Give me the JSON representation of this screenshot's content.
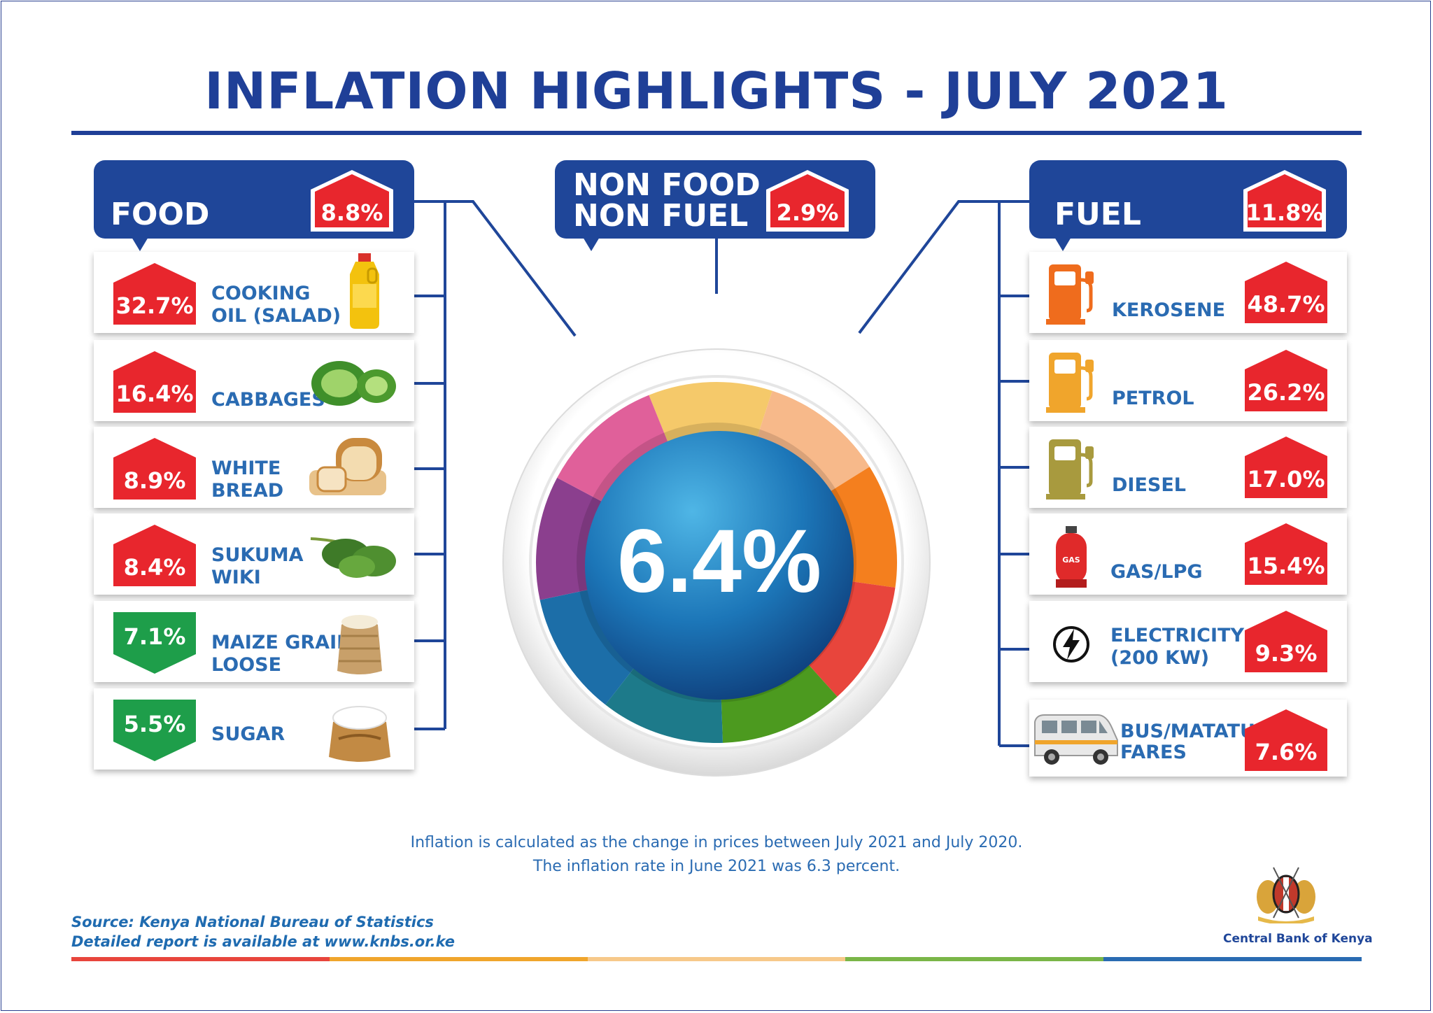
{
  "title": "INFLATION HIGHLIGHTS - JULY 2021",
  "overall": {
    "value": "6.4%"
  },
  "categories": {
    "food": {
      "label": "FOOD",
      "value": "8.8%"
    },
    "nonfood": {
      "label_line1": "NON FOOD",
      "label_line2": "NON FUEL",
      "value": "2.9%"
    },
    "fuel": {
      "label": "FUEL",
      "value": "11.8%"
    }
  },
  "food_items": [
    {
      "line1": "COOKING",
      "line2": "OIL (SALAD)",
      "value": "32.7%",
      "trend": "up",
      "icon": "cooking-oil-bottle-icon"
    },
    {
      "line1": "",
      "line2": "CABBAGES",
      "value": "16.4%",
      "trend": "up",
      "icon": "cabbage-icon"
    },
    {
      "line1": "WHITE",
      "line2": "BREAD",
      "value": "8.9%",
      "trend": "up",
      "icon": "bread-icon"
    },
    {
      "line1": "SUKUMA",
      "line2": "WIKI",
      "value": "8.4%",
      "trend": "up",
      "icon": "sukuma-wiki-icon"
    },
    {
      "line1": "MAIZE GRAIN",
      "line2": "LOOSE",
      "value": "7.1%",
      "trend": "down",
      "icon": "maize-sack-icon"
    },
    {
      "line1": "",
      "line2": "SUGAR",
      "value": "5.5%",
      "trend": "down",
      "icon": "sugar-sack-icon"
    }
  ],
  "fuel_items": [
    {
      "line1": "",
      "line2": "KEROSENE",
      "value": "48.7%",
      "trend": "up",
      "icon": "fuel-pump-icon",
      "color": "#ef6c1d"
    },
    {
      "line1": "",
      "line2": "PETROL",
      "value": "26.2%",
      "trend": "up",
      "icon": "fuel-pump-icon",
      "color": "#f0a52c"
    },
    {
      "line1": "",
      "line2": "DIESEL",
      "value": "17.0%",
      "trend": "up",
      "icon": "fuel-pump-icon",
      "color": "#a89a3e"
    },
    {
      "line1": "",
      "line2": "GAS/LPG",
      "value": "15.4%",
      "trend": "up",
      "icon": "gas-cylinder-icon",
      "color": "#e02a2a"
    },
    {
      "line1": "ELECTRICITY",
      "line2": "(200 KW)",
      "value": "9.3%",
      "trend": "up",
      "icon": "electricity-icon",
      "color": "#111111"
    },
    {
      "line1": "BUS/MATATU",
      "line2": "FARES",
      "value": "7.6%",
      "trend": "up",
      "icon": "matatu-van-icon",
      "color": "#dcdcdc"
    }
  ],
  "gas_cylinder_text": "GAS",
  "footnote": {
    "line1": "Inflation is calculated as the change in prices between July 2021 and July 2020.",
    "line2": "The inflation rate in June 2021 was 6.3 percent."
  },
  "source": {
    "line1": "Source: Kenya National Bureau of Statistics",
    "line2": "Detailed report is available at www.knbs.or.ke"
  },
  "logo": {
    "name": "Central Bank of Kenya"
  },
  "colors": {
    "primary": "#1f4699",
    "up": "#e8262d",
    "down": "#1e9e4a",
    "label": "#2a6bb2",
    "ring": [
      "#f5c96a",
      "#f7b98a",
      "#f47f1e",
      "#e8453c",
      "#4c9a1f",
      "#1d7a8a",
      "#1c6ea8",
      "#8b3f8e",
      "#e0609a"
    ]
  }
}
